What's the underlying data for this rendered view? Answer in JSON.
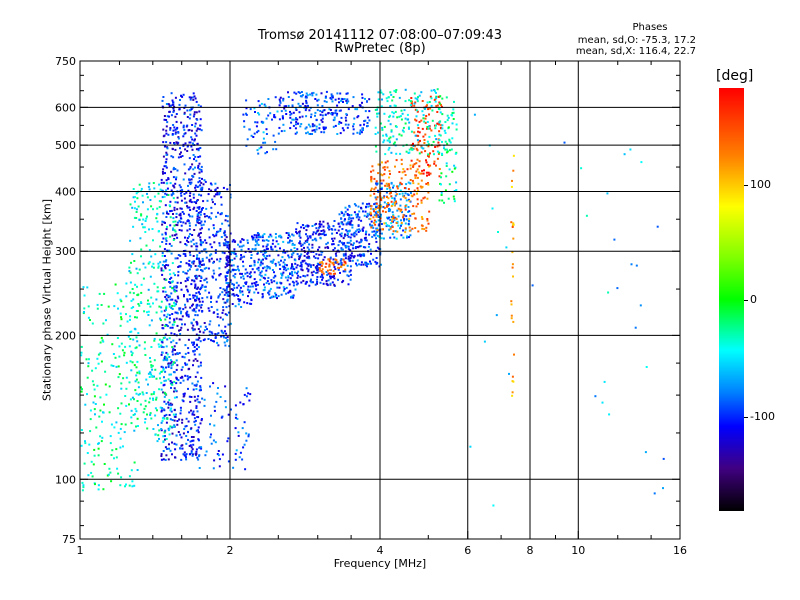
{
  "chart_data": {
    "type": "scatter",
    "title": "Tromsø 20141112 07:08:00–07:09:43",
    "subtitle": "RwPretec (8p)",
    "xlabel": "Frequency [MHz]",
    "ylabel": "Stationary phase Virtual Height [km]",
    "x_scale": "log",
    "y_scale": "log",
    "xlim": [
      1,
      16
    ],
    "ylim": [
      75,
      750
    ],
    "x_ticks": [
      "1",
      "2",
      "4",
      "6",
      "8",
      "10",
      "16"
    ],
    "y_ticks": [
      "75",
      "100",
      "200",
      "300",
      "400",
      "500",
      "600",
      "750"
    ],
    "grid": true,
    "phases": {
      "title": "Phases",
      "o_text": "mean, sd,O: -75.3, 17.2",
      "x_text": "mean, sd,X: 116.4, 22.7"
    },
    "colorbar": {
      "label": "[deg]",
      "ticks": [
        "100",
        "0",
        "-100"
      ],
      "range": [
        -180,
        180
      ]
    },
    "regions": [
      {
        "fmin": 1.45,
        "fmax": 1.75,
        "hmin": 110,
        "hmax": 650,
        "phase": -105,
        "n": 900
      },
      {
        "fmin": 1.25,
        "fmax": 1.55,
        "hmin": 120,
        "hmax": 420,
        "phase": -40,
        "n": 350
      },
      {
        "fmin": 1.0,
        "fmax": 1.3,
        "hmin": 95,
        "hmax": 260,
        "phase": -30,
        "n": 200
      },
      {
        "fmin": 1.7,
        "fmax": 2.0,
        "hmin": 190,
        "hmax": 430,
        "phase": -100,
        "n": 300
      },
      {
        "fmin": 1.95,
        "fmax": 2.2,
        "hmin": 230,
        "hmax": 320,
        "phase": -95,
        "n": 150
      },
      {
        "fmin": 2.2,
        "fmax": 2.7,
        "hmin": 240,
        "hmax": 330,
        "phase": -90,
        "n": 260
      },
      {
        "fmin": 2.7,
        "fmax": 3.5,
        "hmin": 255,
        "hmax": 350,
        "phase": -105,
        "n": 300
      },
      {
        "fmin": 3.3,
        "fmax": 4.0,
        "hmin": 280,
        "hmax": 380,
        "phase": -95,
        "n": 220
      },
      {
        "fmin": 3.9,
        "fmax": 4.6,
        "hmin": 320,
        "hmax": 420,
        "phase": -75,
        "n": 150
      },
      {
        "fmin": 3.0,
        "fmax": 3.4,
        "hmin": 270,
        "hmax": 290,
        "phase": 140,
        "n": 45
      },
      {
        "fmin": 3.8,
        "fmax": 5.0,
        "hmin": 330,
        "hmax": 470,
        "phase": 130,
        "n": 200
      },
      {
        "fmin": 4.6,
        "fmax": 5.3,
        "hmin": 430,
        "hmax": 640,
        "phase": 150,
        "n": 110
      },
      {
        "fmin": 5.2,
        "fmax": 5.7,
        "hmin": 380,
        "hmax": 640,
        "phase": -30,
        "n": 80
      },
      {
        "fmin": 2.5,
        "fmax": 3.8,
        "hmin": 530,
        "hmax": 650,
        "phase": -95,
        "n": 250
      },
      {
        "fmin": 3.9,
        "fmax": 5.2,
        "hmin": 480,
        "hmax": 660,
        "phase": -40,
        "n": 160
      },
      {
        "fmin": 2.1,
        "fmax": 2.5,
        "hmin": 480,
        "hmax": 640,
        "phase": -80,
        "n": 60
      },
      {
        "fmin": 1.7,
        "fmax": 2.2,
        "hmin": 105,
        "hmax": 160,
        "phase": -90,
        "n": 80
      },
      {
        "fmin": 7.3,
        "fmax": 7.4,
        "hmin": 150,
        "hmax": 500,
        "phase": 115,
        "n": 25
      },
      {
        "fmin": 6.0,
        "fmax": 15.0,
        "hmin": 85,
        "hmax": 620,
        "phase": -60,
        "n": 35
      }
    ]
  }
}
